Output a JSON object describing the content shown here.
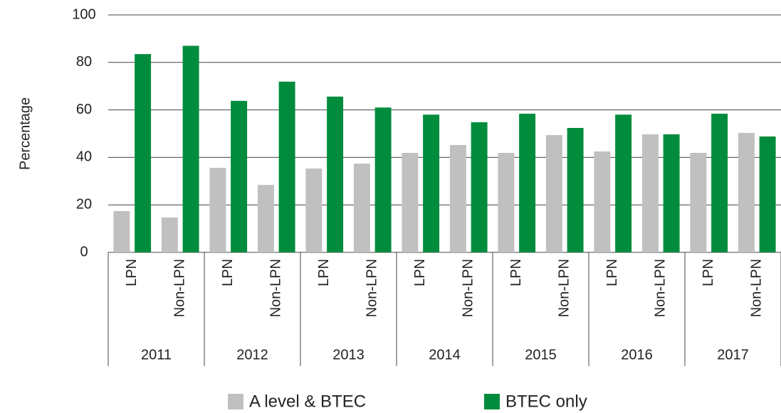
{
  "chart_data": {
    "type": "bar",
    "y_label": "Percentage",
    "groups": [
      "2011",
      "2012",
      "2013",
      "2014",
      "2015",
      "2016",
      "2017"
    ],
    "categories": [
      "LPN",
      "Non-LPN",
      "LPN",
      "Non-LPN",
      "LPN",
      "Non-LPN",
      "LPN",
      "Non-LPN",
      "LPN",
      "Non-LPN",
      "LPN",
      "Non-LPN",
      "LPN",
      "Non-LPN"
    ],
    "series": [
      {
        "name": "A level & BTEC",
        "color": "#c0c0c0",
        "values": [
          17.4,
          14.7,
          35.6,
          28.4,
          35.3,
          37.4,
          41.9,
          45.2,
          41.9,
          49.4,
          42.5,
          49.7,
          41.9,
          50.3
        ]
      },
      {
        "name": "BTEC only",
        "color": "#008c3c",
        "values": [
          83.5,
          87,
          63.8,
          71.9,
          65.6,
          61,
          58,
          54.8,
          58.4,
          52.4,
          58,
          49.7,
          58.4,
          48.8
        ]
      }
    ],
    "ylim": [
      0,
      100
    ],
    "yticks": [
      0,
      20,
      40,
      60,
      80,
      100
    ],
    "grid": true,
    "legend": "bottom"
  }
}
